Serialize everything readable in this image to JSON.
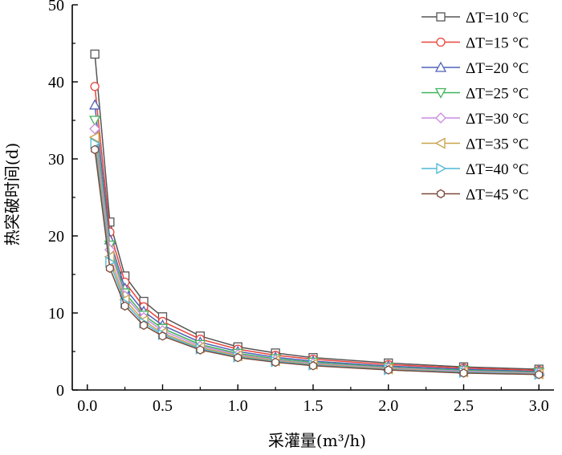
{
  "chart_data": {
    "type": "line",
    "title": "",
    "xlabel": "采灌量(m³/h)",
    "ylabel": "热突破时间(d)",
    "xlim": [
      -0.1,
      3.1
    ],
    "ylim": [
      0,
      50
    ],
    "xticks": [
      "0.0",
      "0.5",
      "1.0",
      "1.5",
      "2.0",
      "2.5",
      "3.0"
    ],
    "yticks": [
      "0",
      "10",
      "20",
      "30",
      "40",
      "50"
    ],
    "x": [
      0.05,
      0.15,
      0.25,
      0.375,
      0.5,
      0.75,
      1.0,
      1.25,
      1.5,
      2.0,
      2.5,
      3.0
    ],
    "legend_position": "top-right",
    "grid": false,
    "series": [
      {
        "name": "ΔT=10 °C",
        "color": "#555555",
        "marker": "square",
        "values": [
          43.6,
          21.8,
          14.8,
          11.5,
          9.5,
          7.0,
          5.6,
          4.8,
          4.2,
          3.5,
          3.0,
          2.7
        ]
      },
      {
        "name": "ΔT=15 °C",
        "color": "#e8453c",
        "marker": "circle",
        "values": [
          39.4,
          20.5,
          14.0,
          10.8,
          8.9,
          6.6,
          5.3,
          4.5,
          4.0,
          3.3,
          2.85,
          2.55
        ]
      },
      {
        "name": "ΔT=20 °C",
        "color": "#4f62b8",
        "marker": "triangle-up",
        "values": [
          37.0,
          19.5,
          13.2,
          10.2,
          8.4,
          6.2,
          5.0,
          4.25,
          3.75,
          3.1,
          2.7,
          2.4
        ]
      },
      {
        "name": "ΔT=25 °C",
        "color": "#3fb35b",
        "marker": "triangle-down",
        "values": [
          35.0,
          18.8,
          12.6,
          9.7,
          8.0,
          5.9,
          4.75,
          4.05,
          3.6,
          2.95,
          2.55,
          2.3
        ]
      },
      {
        "name": "ΔT=30 °C",
        "color": "#c98be0",
        "marker": "diamond",
        "values": [
          33.9,
          18.2,
          12.2,
          9.4,
          7.7,
          5.7,
          4.6,
          3.9,
          3.45,
          2.85,
          2.45,
          2.2
        ]
      },
      {
        "name": "ΔT=35 °C",
        "color": "#c9a24c",
        "marker": "triangle-left",
        "values": [
          32.8,
          17.3,
          11.7,
          9.0,
          7.4,
          5.5,
          4.45,
          3.8,
          3.35,
          2.75,
          2.35,
          2.1
        ]
      },
      {
        "name": "ΔT=40 °C",
        "color": "#4fb8d8",
        "marker": "triangle-right",
        "values": [
          32.0,
          16.6,
          11.3,
          8.7,
          7.2,
          5.35,
          4.3,
          3.7,
          3.25,
          2.65,
          2.3,
          2.05
        ]
      },
      {
        "name": "ΔT=45 °C",
        "color": "#7a4a3a",
        "marker": "hexagon",
        "values": [
          31.2,
          15.8,
          10.9,
          8.4,
          7.0,
          5.2,
          4.2,
          3.6,
          3.15,
          2.6,
          2.2,
          2.0
        ]
      }
    ]
  }
}
